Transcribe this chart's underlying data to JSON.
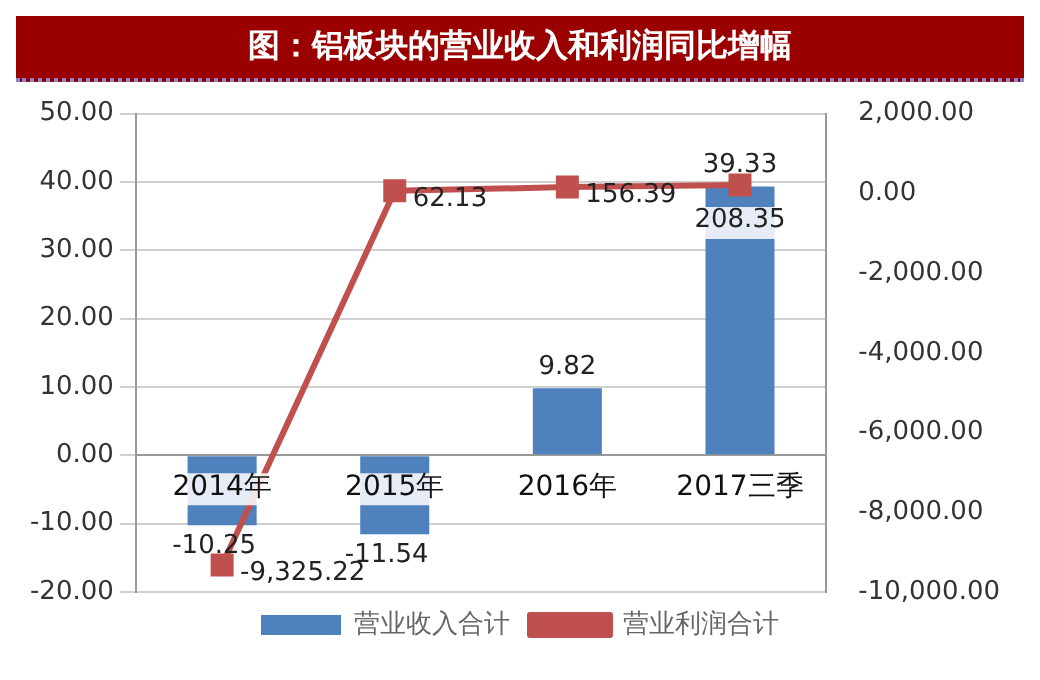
{
  "chart_data": {
    "type": "bar",
    "title": "图：铝板块的营业收入和利润同比增幅",
    "categories": [
      "2014年",
      "2015年",
      "2016年",
      "2017三季"
    ],
    "series": [
      {
        "name": "营业收入合计",
        "type": "bar",
        "color": "#4f81bd",
        "values": [
          -10.25,
          -11.54,
          9.82,
          39.33
        ],
        "value_labels": [
          "-10.25",
          "-11.54",
          "9.82",
          "39.33"
        ]
      },
      {
        "name": "营业利润合计",
        "type": "line",
        "axis": "y2",
        "color": "#c0504d",
        "values": [
          -9325.22,
          62.13,
          156.39,
          208.35
        ],
        "value_labels": [
          "-9,325.22",
          "62.13",
          "156.39",
          "208.35"
        ]
      }
    ],
    "ylim": [
      -20,
      50
    ],
    "yticks": [
      {
        "value": -20,
        "label": "-20.00"
      },
      {
        "value": -10,
        "label": "-10.00"
      },
      {
        "value": 0,
        "label": "0.00"
      },
      {
        "value": 10,
        "label": "10.00"
      },
      {
        "value": 20,
        "label": "20.00"
      },
      {
        "value": 30,
        "label": "30.00"
      },
      {
        "value": 40,
        "label": "40.00"
      },
      {
        "value": 50,
        "label": "50.00"
      }
    ],
    "y2lim": [
      -10000,
      2000
    ],
    "y2ticks": [
      {
        "value": -10000,
        "label": "-10,000.00"
      },
      {
        "value": -8000,
        "label": "-8,000.00"
      },
      {
        "value": -6000,
        "label": "-6,000.00"
      },
      {
        "value": -4000,
        "label": "-4,000.00"
      },
      {
        "value": -2000,
        "label": "-2,000.00"
      },
      {
        "value": 0,
        "label": "0.00"
      },
      {
        "value": 2000,
        "label": "2,000.00"
      }
    ],
    "grid": "y",
    "legend": "bottom",
    "marker": "square"
  }
}
